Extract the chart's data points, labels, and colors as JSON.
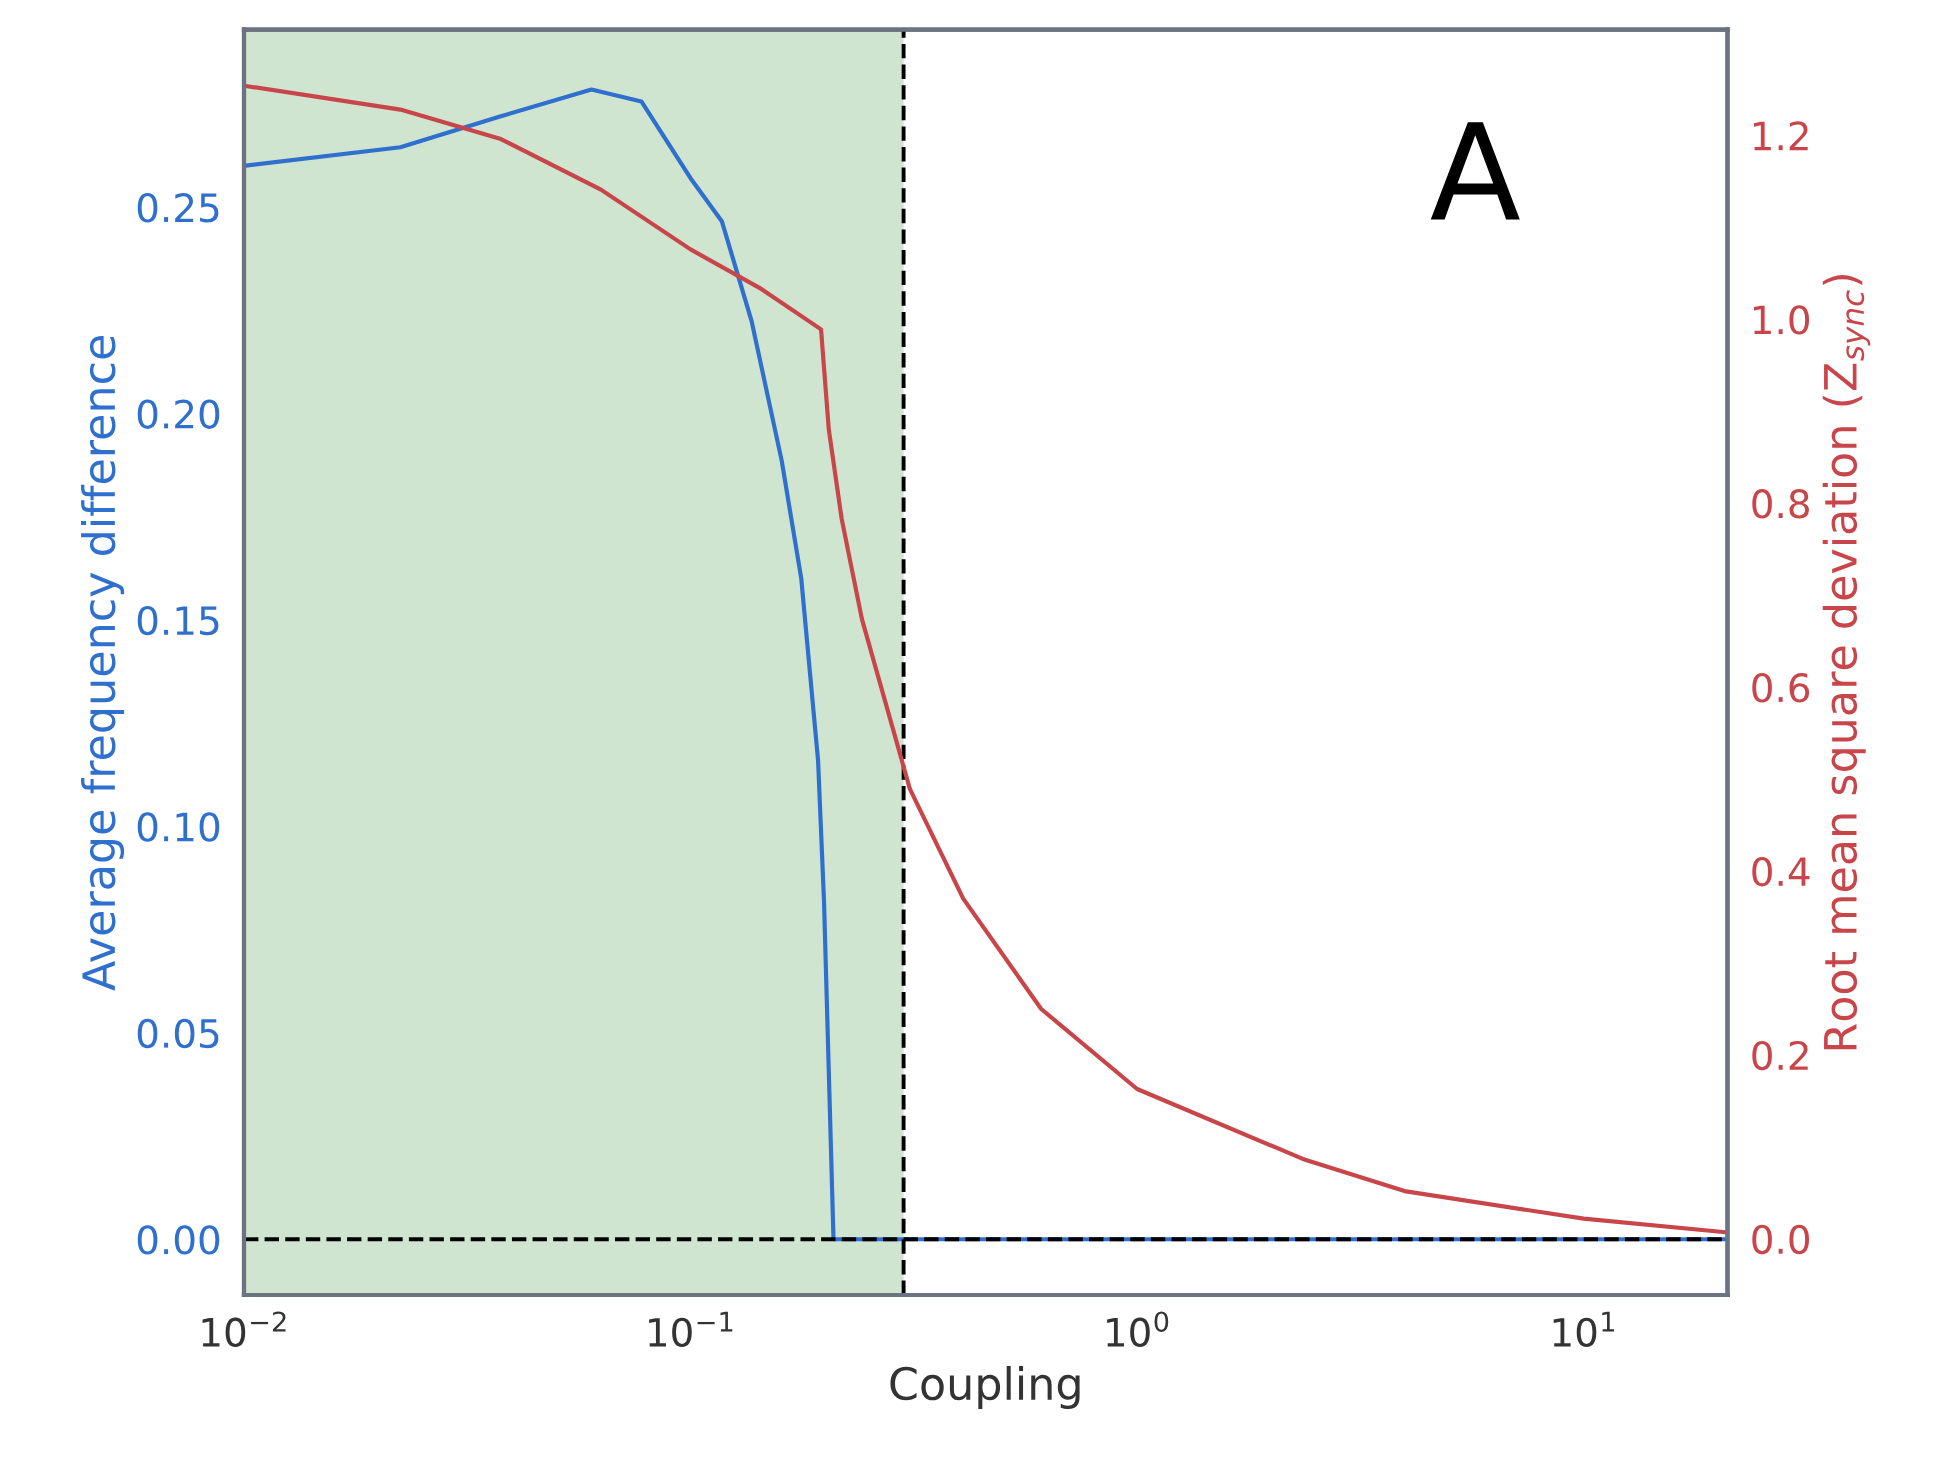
{
  "chart_data": {
    "type": "line",
    "xlabel": "Coupling",
    "ylabel": "Average frequency difference",
    "y2label": "Root mean square deviation (Z$_{sync}$)",
    "log": "x",
    "grid": false,
    "line_style": "solid",
    "marker": "none",
    "xlim": [
      0.01,
      21
    ],
    "xticks": [
      {
        "value": 0.01,
        "label": "10$^{−2}$"
      },
      {
        "value": 0.1,
        "label": "10$^{−1}$"
      },
      {
        "value": 1,
        "label": "10$^{0}$"
      },
      {
        "value": 10,
        "label": "10$^{1}$"
      }
    ],
    "ylim": [
      -0.0135,
      0.293
    ],
    "yticks": [
      {
        "value": 0,
        "label": "0.00"
      },
      {
        "value": 0.05,
        "label": "0.05"
      },
      {
        "value": 0.1,
        "label": "0.10"
      },
      {
        "value": 0.15,
        "label": "0.15"
      },
      {
        "value": 0.2,
        "label": "0.20"
      },
      {
        "value": 0.25,
        "label": "0.25"
      }
    ],
    "y2lim": [
      -0.061,
      1.315
    ],
    "y2ticks": [
      {
        "value": 0,
        "label": "0.0"
      },
      {
        "value": 0.2,
        "label": "0.2"
      },
      {
        "value": 0.4,
        "label": "0.4"
      },
      {
        "value": 0.6,
        "label": "0.6"
      },
      {
        "value": 0.8,
        "label": "0.8"
      },
      {
        "value": 1.0,
        "label": "1.0"
      },
      {
        "value": 1.2,
        "label": "1.2"
      }
    ],
    "series": [
      {
        "color": "#2f6fce",
        "x": [
          0.01,
          0.0224,
          0.0376,
          0.06,
          0.0776,
          0.1,
          0.1175,
          0.137,
          0.16,
          0.177,
          0.193,
          0.199,
          0.209,
          0.3,
          1,
          10,
          21
        ],
        "values": [
          0.26,
          0.2645,
          0.272,
          0.2785,
          0.2756,
          0.257,
          0.2466,
          0.2224,
          0.1886,
          0.16,
          0.116,
          0.082,
          0,
          0,
          0,
          0,
          0
        ]
      },
      {
        "color": "#c8454a",
        "axis": "y2",
        "x": [
          0.01,
          0.0224,
          0.0376,
          0.063,
          0.1,
          0.144,
          0.196,
          0.204,
          0.218,
          0.242,
          0.31,
          0.408,
          0.61,
          1,
          2.35,
          3.97,
          10,
          21
        ],
        "values": [
          1.254,
          1.228,
          1.196,
          1.141,
          1.076,
          1.033,
          0.989,
          0.88,
          0.783,
          0.674,
          0.489,
          0.37,
          0.25,
          0.163,
          0.087,
          0.052,
          0.022,
          0.007
        ]
      }
    ],
    "bands": [
      {
        "axis": "x",
        "from": 0.01,
        "to": 0.3,
        "color": "#cfe5cf"
      }
    ],
    "ref_lines": [
      {
        "axis": "x",
        "value": 0.3,
        "color": "#000000",
        "line_style": "dashed"
      },
      {
        "axis": "y",
        "value": 0,
        "color": "#000000",
        "line_style": "dashed"
      }
    ],
    "annotations": [
      "A"
    ]
  }
}
